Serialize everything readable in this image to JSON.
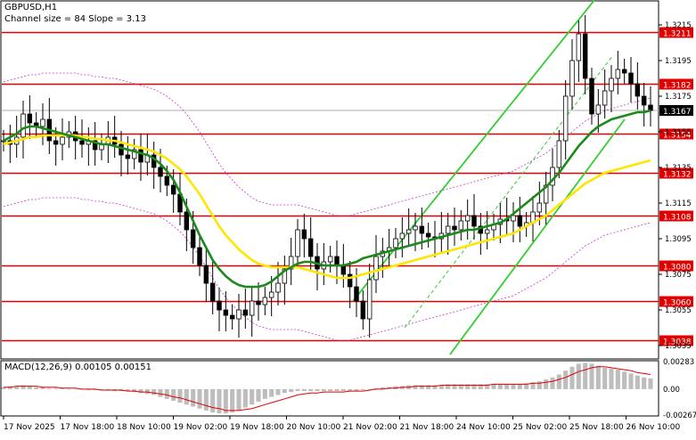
{
  "header": {
    "symbol": "GBPUSD,H1",
    "channel_info": "Channel size = 84 Slope = 3.13"
  },
  "macd": {
    "label": "MACD(12,26,9) 0.00105 0.00151",
    "axis_labels": [
      "0.00283",
      "0.00",
      "-0.00267"
    ]
  },
  "price_axis": {
    "ticks": [
      "1.3215",
      "1.3195",
      "1.3175",
      "1.3155",
      "1.3135",
      "1.3115",
      "1.3095",
      "1.3075",
      "1.3055",
      "1.3035"
    ],
    "levels": [
      {
        "price": 1.3211,
        "label": "1.3211"
      },
      {
        "price": 1.3182,
        "label": "1.3182"
      },
      {
        "price": 1.3154,
        "label": "1.3154"
      },
      {
        "price": 1.3132,
        "label": "1.3132"
      },
      {
        "price": 1.3108,
        "label": "1.3108"
      },
      {
        "price": 1.308,
        "label": "1.3080"
      },
      {
        "price": 1.306,
        "label": "1.3060"
      },
      {
        "price": 1.3038,
        "label": "1.3038"
      }
    ],
    "current_price": "1.3167",
    "partial_price": "1.3170"
  },
  "time_axis": [
    "17 Nov 2025",
    "17 Nov 18:00",
    "18 Nov 10:00",
    "19 Nov 02:00",
    "19 Nov 18:00",
    "20 Nov 10:00",
    "21 Nov 02:00",
    "21 Nov 18:00",
    "24 Nov 10:00",
    "25 Nov 02:00",
    "25 Nov 18:00",
    "26 Nov 10:00"
  ],
  "colors": {
    "level_line": "#e00000",
    "channel": "#32cd32",
    "ma_fast": "#1a8a1a",
    "ma_slow": "#ffe600",
    "envelope": "#cc33cc",
    "macd_hist": "#bdbdbd",
    "macd_signal": "#e00000"
  },
  "chart_data": {
    "type": "candlestick",
    "symbol": "GBPUSD",
    "timeframe": "H1",
    "ylim": [
      1.3028,
      1.3228
    ],
    "close_path": [
      1.315,
      1.3148,
      1.3152,
      1.3165,
      1.316,
      1.3158,
      1.3162,
      1.315,
      1.3148,
      1.3152,
      1.3155,
      1.315,
      1.3148,
      1.315,
      1.3145,
      1.3148,
      1.3152,
      1.3148,
      1.3142,
      1.314,
      1.3145,
      1.3138,
      1.3142,
      1.3135,
      1.313,
      1.3125,
      1.312,
      1.311,
      1.31,
      1.309,
      1.308,
      1.307,
      1.306,
      1.3055,
      1.3052,
      1.305,
      1.3055,
      1.3052,
      1.306,
      1.3058,
      1.3062,
      1.3065,
      1.307,
      1.3078,
      1.3085,
      1.31,
      1.3095,
      1.3085,
      1.3078,
      1.3082,
      1.3085,
      1.308,
      1.3075,
      1.3068,
      1.306,
      1.305,
      1.3072,
      1.3085,
      1.3088,
      1.309,
      1.3095,
      1.3098,
      1.31,
      1.3102,
      1.3098,
      1.3096,
      1.3095,
      1.3098,
      1.3102,
      1.31,
      1.3105,
      1.3108,
      1.3102,
      1.3098,
      1.31,
      1.3103,
      1.3106,
      1.3105,
      1.3108,
      1.3102,
      1.3104,
      1.311,
      1.3115,
      1.3125,
      1.3135,
      1.315,
      1.3175,
      1.3195,
      1.321,
      1.3185,
      1.3165,
      1.317,
      1.3178,
      1.3185,
      1.319,
      1.3188,
      1.3182,
      1.3175,
      1.317,
      1.3167
    ],
    "ma_fast": [
      1.315,
      1.3152,
      1.3154,
      1.3157,
      1.3158,
      1.3158,
      1.3157,
      1.3156,
      1.3155,
      1.3154,
      1.3153,
      1.3152,
      1.3151,
      1.315,
      1.3149,
      1.3148,
      1.3148,
      1.3147,
      1.3146,
      1.3145,
      1.3144,
      1.3143,
      1.3142,
      1.314,
      1.3137,
      1.3133,
      1.3128,
      1.3121,
      1.3113,
      1.3105,
      1.3097,
      1.309,
      1.3083,
      1.3078,
      1.3074,
      1.3071,
      1.3069,
      1.3068,
      1.3068,
      1.3068,
      1.3069,
      1.3071,
      1.3074,
      1.3077,
      1.3079,
      1.3081,
      1.3082,
      1.3082,
      1.3081,
      1.308,
      1.308,
      1.308,
      1.308,
      1.3081,
      1.3082,
      1.3084,
      1.3085,
      1.3086,
      1.3087,
      1.3088,
      1.3089,
      1.309,
      1.3091,
      1.3092,
      1.3093,
      1.3094,
      1.3095,
      1.3096,
      1.3097,
      1.3098,
      1.3099,
      1.31,
      1.31,
      1.3101,
      1.3102,
      1.3103,
      1.3104,
      1.3106,
      1.3109,
      1.3112,
      1.3115,
      1.3118,
      1.3121,
      1.3124,
      1.3128,
      1.3132,
      1.3137,
      1.3142,
      1.3147,
      1.3151,
      1.3155,
      1.3158,
      1.316,
      1.3162,
      1.3163,
      1.3164,
      1.3165,
      1.3166,
      1.3166,
      1.3167
    ],
    "ma_slow": [
      1.3148,
      1.3149,
      1.315,
      1.3151,
      1.3152,
      1.3152,
      1.3153,
      1.3153,
      1.3153,
      1.3153,
      1.3153,
      1.3153,
      1.3152,
      1.3152,
      1.3151,
      1.3151,
      1.315,
      1.315,
      1.3149,
      1.3148,
      1.3147,
      1.3146,
      1.3145,
      1.3144,
      1.3142,
      1.314,
      1.3137,
      1.3134,
      1.313,
      1.3125,
      1.312,
      1.3114,
      1.3108,
      1.3102,
      1.3097,
      1.3093,
      1.3089,
      1.3086,
      1.3083,
      1.3081,
      1.308,
      1.3079,
      1.3079,
      1.3079,
      1.3079,
      1.3079,
      1.3078,
      1.3077,
      1.3076,
      1.3075,
      1.3074,
      1.3073,
      1.3073,
      1.3073,
      1.3074,
      1.3075,
      1.3076,
      1.3077,
      1.3078,
      1.3079,
      1.308,
      1.3081,
      1.3082,
      1.3083,
      1.3084,
      1.3085,
      1.3086,
      1.3087,
      1.3088,
      1.3089,
      1.309,
      1.3091,
      1.3092,
      1.3093,
      1.3094,
      1.3095,
      1.3096,
      1.3097,
      1.3098,
      1.31,
      1.3102,
      1.3104,
      1.3106,
      1.3108,
      1.3111,
      1.3114,
      1.3117,
      1.312,
      1.3123,
      1.3126,
      1.3128,
      1.313,
      1.3132,
      1.3133,
      1.3134,
      1.3135,
      1.3136,
      1.3137,
      1.3138,
      1.3139
    ],
    "channel_lines": [
      {
        "name": "upper",
        "x0": 0.54,
        "y0": 1.306,
        "x1": 0.92,
        "y1": 1.3232
      },
      {
        "name": "lower",
        "x0": 0.69,
        "y0": 1.303,
        "x1": 0.96,
        "y1": 1.3162
      },
      {
        "name": "middle",
        "x0": 0.62,
        "y0": 1.3045,
        "x1": 0.94,
        "y1": 1.3197
      }
    ],
    "macd_ylim": [
      -0.00267,
      0.00283
    ],
    "macd_hist": [
      0.0002,
      0.0003,
      0.0003,
      0.0004,
      0.0003,
      0.0002,
      0.0002,
      0.0001,
      0.0001,
      0.0001,
      0.0,
      0.0,
      0.0,
      -0.0001,
      -0.0001,
      -0.0001,
      -0.0001,
      -0.0002,
      -0.0002,
      -0.0002,
      -0.0003,
      -0.0004,
      -0.0005,
      -0.0006,
      -0.0008,
      -0.001,
      -0.0012,
      -0.0014,
      -0.0016,
      -0.0018,
      -0.002,
      -0.0022,
      -0.0024,
      -0.0025,
      -0.0025,
      -0.0024,
      -0.0022,
      -0.0019,
      -0.0016,
      -0.0013,
      -0.001,
      -0.0008,
      -0.0006,
      -0.0004,
      -0.0003,
      -0.0002,
      -0.0002,
      -0.0002,
      -0.0002,
      -0.0002,
      -0.0002,
      -0.0002,
      -0.0002,
      -0.0002,
      -0.0002,
      -0.0001,
      0.0,
      0.0001,
      0.0002,
      0.0002,
      0.0003,
      0.0003,
      0.0004,
      0.0004,
      0.0004,
      0.0004,
      0.0004,
      0.0004,
      0.0005,
      0.0005,
      0.0005,
      0.0005,
      0.0005,
      0.0005,
      0.0005,
      0.0005,
      0.0005,
      0.0005,
      0.0005,
      0.0005,
      0.0006,
      0.0007,
      0.0008,
      0.001,
      0.0012,
      0.0015,
      0.0019,
      0.0023,
      0.0026,
      0.0027,
      0.0026,
      0.0024,
      0.0022,
      0.0021,
      0.002,
      0.0018,
      0.0016,
      0.0014,
      0.0012,
      0.0011
    ],
    "macd_signal": [
      0.0002,
      0.0002,
      0.0003,
      0.0003,
      0.0003,
      0.0003,
      0.0002,
      0.0002,
      0.0002,
      0.0001,
      0.0001,
      0.0001,
      0.0,
      0.0,
      0.0,
      -0.0001,
      -0.0001,
      -0.0001,
      -0.0001,
      -0.0002,
      -0.0002,
      -0.0003,
      -0.0003,
      -0.0004,
      -0.0005,
      -0.0006,
      -0.0008,
      -0.0009,
      -0.0011,
      -0.0013,
      -0.0015,
      -0.0017,
      -0.0019,
      -0.002,
      -0.0022,
      -0.0022,
      -0.0022,
      -0.0021,
      -0.002,
      -0.0018,
      -0.0016,
      -0.0014,
      -0.0012,
      -0.001,
      -0.0008,
      -0.0006,
      -0.0005,
      -0.0004,
      -0.0004,
      -0.0003,
      -0.0003,
      -0.0003,
      -0.0003,
      -0.0002,
      -0.0002,
      -0.0002,
      -0.0001,
      0.0,
      0.0,
      0.0001,
      0.0001,
      0.0002,
      0.0002,
      0.0003,
      0.0003,
      0.0003,
      0.0003,
      0.0004,
      0.0004,
      0.0004,
      0.0004,
      0.0004,
      0.0004,
      0.0004,
      0.0004,
      0.0005,
      0.0005,
      0.0005,
      0.0005,
      0.0005,
      0.0005,
      0.0006,
      0.0006,
      0.0007,
      0.0008,
      0.001,
      0.0012,
      0.0015,
      0.0018,
      0.002,
      0.0022,
      0.0023,
      0.0023,
      0.0022,
      0.0021,
      0.002,
      0.0019,
      0.0017,
      0.0016,
      0.0015
    ]
  }
}
